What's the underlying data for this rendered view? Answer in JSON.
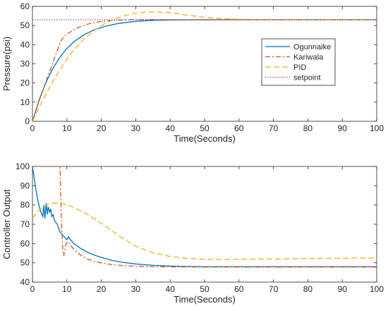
{
  "chart_data": [
    {
      "type": "line",
      "xlabel": "Time(Seconds)",
      "ylabel": "Pressure(psi)",
      "xlim": [
        0,
        100
      ],
      "ylim": [
        0,
        60
      ],
      "xticks": [
        0,
        10,
        20,
        30,
        40,
        50,
        60,
        70,
        80,
        90,
        100
      ],
      "yticks": [
        0,
        10,
        20,
        30,
        40,
        50,
        60
      ],
      "grid": false,
      "legend_position": "right-middle",
      "series": [
        {
          "name": "Ogunnaike",
          "color": "#0072BD",
          "dash": "solid",
          "x": [
            0,
            2,
            4,
            6,
            8,
            10,
            12,
            15,
            18,
            21,
            25,
            30,
            35,
            40,
            50,
            60,
            70,
            80,
            90,
            100
          ],
          "y": [
            0,
            11.5,
            20.6,
            27.8,
            33.5,
            38,
            41.5,
            45.2,
            47.8,
            49.5,
            51.1,
            52.2,
            52.7,
            52.9,
            53,
            53,
            53,
            53,
            53,
            53
          ]
        },
        {
          "name": "Kariwala",
          "color": "#D95319",
          "dash": "dashdot",
          "x": [
            0,
            2,
            4,
            6,
            8,
            9,
            10,
            12,
            14,
            16,
            18,
            20,
            23,
            26,
            30,
            35,
            40,
            50,
            60,
            70,
            80,
            90,
            100
          ],
          "y": [
            0,
            11,
            21,
            31,
            41,
            44,
            45.5,
            47.8,
            49.5,
            50.7,
            51.5,
            52.1,
            52.6,
            52.9,
            53.1,
            53.1,
            53,
            53,
            53,
            53,
            53,
            53,
            53
          ]
        },
        {
          "name": "PID",
          "color": "#EDB120",
          "dash": "dashed",
          "x": [
            0,
            2,
            4,
            6,
            8,
            10,
            12,
            15,
            18,
            21,
            24,
            27,
            30,
            33,
            36,
            39,
            42,
            45,
            50,
            55,
            60,
            70,
            80,
            90,
            100
          ],
          "y": [
            0,
            7.5,
            14.5,
            21,
            27,
            32.5,
            37.2,
            43,
            47.5,
            51,
            53.5,
            55.3,
            56.5,
            57,
            57.1,
            56.8,
            56.2,
            55.4,
            54.3,
            53.6,
            53.2,
            53,
            53,
            53,
            53
          ]
        },
        {
          "name": "setpoint",
          "color": "#7E2F8E",
          "dash": "dotted",
          "x": [
            0,
            100
          ],
          "y": [
            53,
            53
          ]
        }
      ]
    },
    {
      "type": "line",
      "xlabel": "Time(Seconds)",
      "ylabel": "Controller Output",
      "xlim": [
        0,
        100
      ],
      "ylim": [
        40,
        100
      ],
      "xticks": [
        0,
        10,
        20,
        30,
        40,
        50,
        60,
        70,
        80,
        90,
        100
      ],
      "yticks": [
        40,
        50,
        60,
        70,
        80,
        90,
        100
      ],
      "grid": false,
      "series": [
        {
          "color": "#0072BD",
          "dash": "solid",
          "x": [
            0,
            1,
            1.5,
            2,
            2.5,
            3,
            3.3,
            3.6,
            4,
            4.3,
            4.6,
            5,
            5.3,
            5.6,
            6,
            6.4,
            6.8,
            7.2,
            7.6,
            8,
            8.5,
            9,
            9.5,
            10,
            10.5,
            11,
            12,
            14,
            16,
            18,
            20,
            23,
            26,
            30,
            35,
            40,
            45,
            50,
            60,
            70,
            80,
            90,
            100
          ],
          "y": [
            100,
            88,
            83,
            79,
            76,
            74,
            80,
            73,
            81,
            75,
            79,
            76,
            78,
            74,
            75,
            72,
            71,
            70,
            68,
            66,
            65,
            64,
            63,
            62,
            63.5,
            62,
            60,
            57.5,
            55.5,
            54,
            52.8,
            51.3,
            50.3,
            49.4,
            48.7,
            48.3,
            48.1,
            48,
            48,
            48,
            48,
            48,
            48
          ]
        },
        {
          "color": "#D95319",
          "dash": "dashdot",
          "x": [
            0,
            8,
            8.4,
            8.8,
            9.1,
            9.4,
            9.8,
            10.3,
            11,
            12,
            14,
            16,
            18,
            20,
            23,
            26,
            30,
            35,
            40,
            50,
            60,
            70,
            80,
            90,
            100
          ],
          "y": [
            100,
            100,
            72,
            57,
            53.5,
            57,
            60,
            61,
            59.5,
            57,
            54,
            52,
            50.7,
            49.9,
            49.1,
            48.6,
            48.2,
            48,
            47.9,
            47.8,
            47.8,
            47.8,
            47.8,
            47.8,
            47.8
          ]
        },
        {
          "color": "#EDB120",
          "dash": "dashed",
          "x": [
            0,
            1,
            2,
            3,
            4,
            5,
            6,
            7,
            8,
            9,
            10,
            12,
            14,
            16,
            18,
            20,
            23,
            26,
            30,
            35,
            40,
            45,
            50,
            55,
            60,
            70,
            80,
            90,
            100
          ],
          "y": [
            73,
            75.5,
            77.5,
            79,
            80,
            80.6,
            80.9,
            81,
            80.9,
            80.6,
            80.1,
            78.8,
            77,
            75,
            72.8,
            70.5,
            66.8,
            63,
            58.6,
            55.2,
            53.3,
            52.3,
            51.8,
            51.7,
            51.8,
            52,
            52.2,
            52.4,
            52.5
          ]
        }
      ]
    }
  ]
}
